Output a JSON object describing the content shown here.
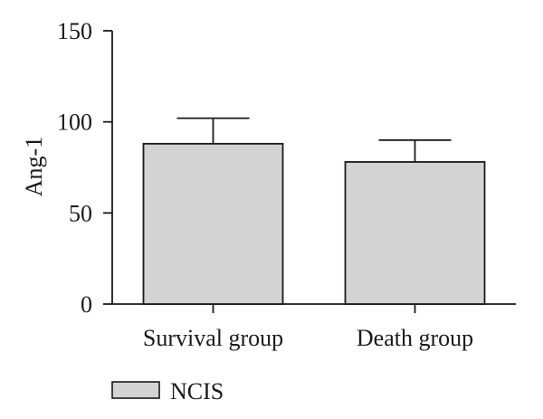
{
  "chart_data": {
    "type": "bar",
    "categories": [
      "Survival group",
      "Death group"
    ],
    "series": [
      {
        "name": "NCIS",
        "values": [
          88,
          78
        ],
        "error": [
          14,
          12
        ],
        "color": "#d3d3d3"
      }
    ],
    "ylabel": "Ang-1",
    "xlabel": "",
    "ylim": [
      0,
      150
    ],
    "yticks": [
      0,
      50,
      100,
      150
    ],
    "legend_position": "bottom-left",
    "grid": false
  }
}
